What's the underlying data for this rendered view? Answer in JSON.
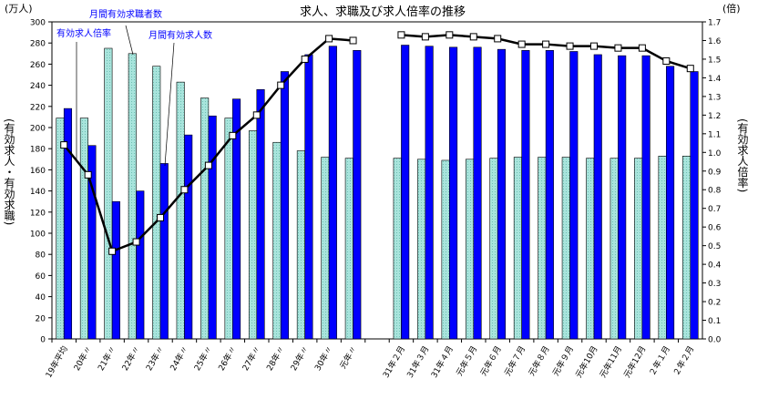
{
  "chart_data": {
    "type": "bar",
    "title": "求人、求職及び求人倍率の推移",
    "y_left_unit": "(万人)",
    "y_right_unit": "(倍)",
    "ylabel_left": "(有効求人・有効求職)",
    "ylabel_right": "(有効求人倍率)",
    "ylim_left": [
      0,
      300
    ],
    "ylim_right": [
      0,
      1.7
    ],
    "yticks_left": [
      "0",
      "20",
      "40",
      "60",
      "80",
      "100",
      "120",
      "140",
      "160",
      "180",
      "200",
      "220",
      "240",
      "260",
      "280",
      "300"
    ],
    "yticks_right": [
      "0.0",
      "0.1",
      "0.2",
      "0.3",
      "0.4",
      "0.5",
      "0.6",
      "0.7",
      "0.8",
      "0.9",
      "1.0",
      "1.1",
      "1.2",
      "1.3",
      "1.4",
      "1.5",
      "1.6",
      "1.7"
    ],
    "categories": [
      "19年平均",
      "20年〃",
      "21年〃",
      "22年〃",
      "23年〃",
      "24年〃",
      "25年〃",
      "26年〃",
      "27年〃",
      "28年〃",
      "29年〃",
      "30年〃",
      "元年〃",
      "",
      "31年２月",
      "31年３月",
      "31年４月",
      "元年５月",
      "元年６月",
      "元年７月",
      "元年８月",
      "元年９月",
      "元年10月",
      "元年11月",
      "元年12月",
      "２年１月",
      "２年２月"
    ],
    "series": [
      {
        "name": "月間有効求職者数",
        "axis": "left",
        "type": "bar",
        "color": "#a8e4dc",
        "values": [
          209,
          209,
          275,
          270,
          258,
          243,
          228,
          209,
          197,
          186,
          178,
          172,
          171,
          null,
          171,
          170,
          169,
          170,
          171,
          172,
          172,
          172,
          171,
          171,
          171,
          173,
          173
        ]
      },
      {
        "name": "月間有効求人数",
        "axis": "left",
        "type": "bar",
        "color": "#0000ff",
        "values": [
          218,
          183,
          130,
          140,
          166,
          193,
          211,
          227,
          236,
          253,
          269,
          277,
          273,
          null,
          278,
          277,
          276,
          276,
          274,
          273,
          273,
          272,
          269,
          268,
          268,
          258,
          253
        ]
      },
      {
        "name": "有効求人倍率",
        "axis": "right",
        "type": "line",
        "color": "#000000",
        "values": [
          1.04,
          0.88,
          0.47,
          0.52,
          0.65,
          0.8,
          0.93,
          1.09,
          1.2,
          1.36,
          1.5,
          1.61,
          1.6,
          null,
          1.63,
          1.62,
          1.63,
          1.62,
          1.61,
          1.58,
          1.58,
          1.57,
          1.57,
          1.56,
          1.56,
          1.49,
          1.45
        ]
      }
    ],
    "legend": "annotations"
  }
}
